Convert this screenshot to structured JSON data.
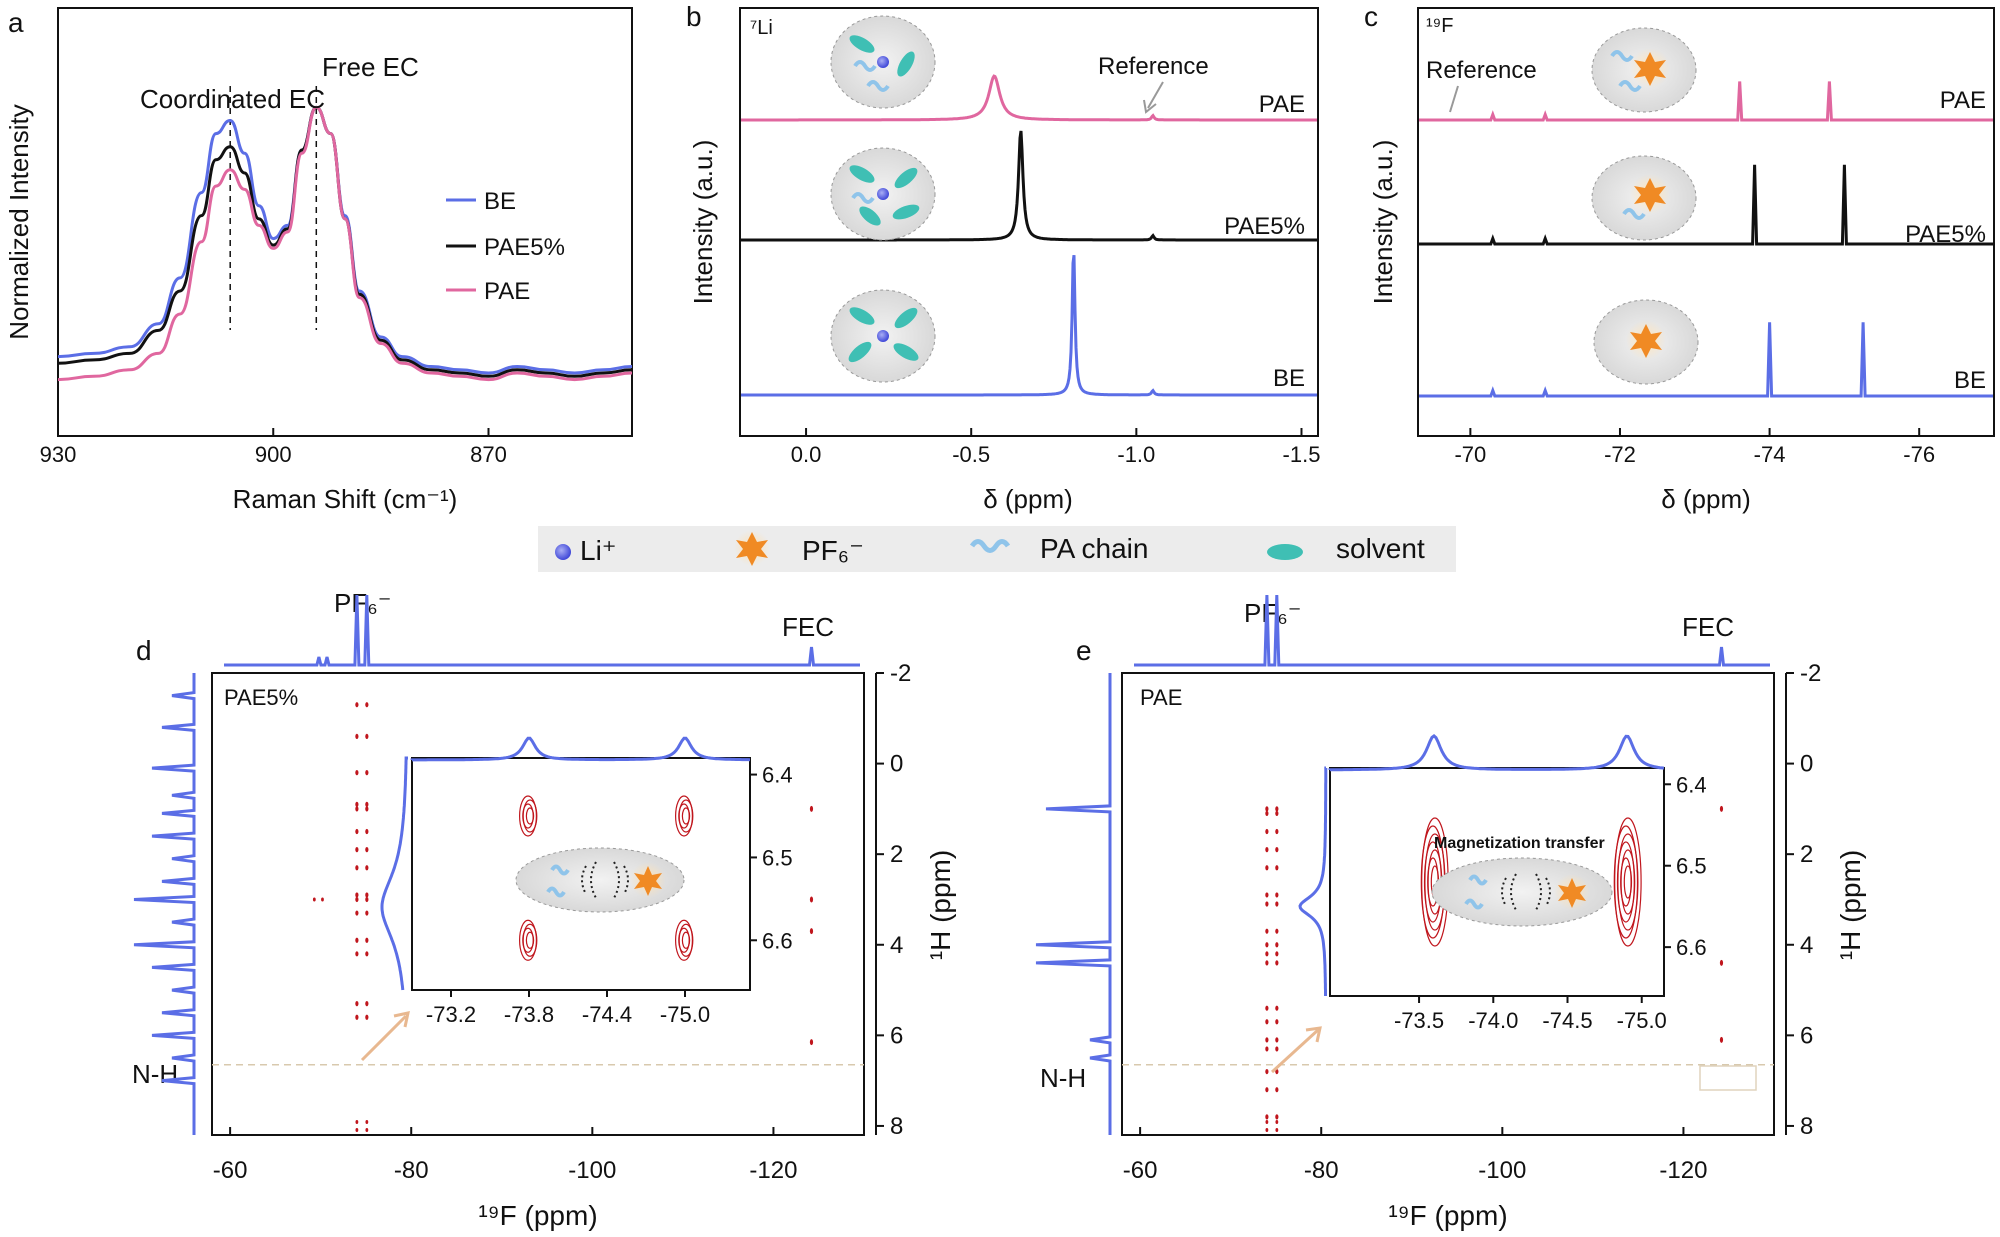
{
  "colors": {
    "BE": "#5b6ee6",
    "PAE5": "#111111",
    "PAE": "#e0679f",
    "contour": "#c0161d",
    "li": "#5b5fe0",
    "pf6": "#f08a24",
    "chain": "#8fc4ea",
    "solvent": "#3fbfb4",
    "dashLine": "#d8c9ae",
    "arrow": "#e8b890"
  },
  "legend_bar": {
    "items": [
      {
        "label": "Li⁺",
        "icon": "li-ion-icon"
      },
      {
        "label": "PF₆⁻",
        "icon": "pf6-star-icon"
      },
      {
        "label": "PA chain",
        "icon": "pa-chain-icon"
      },
      {
        "label": "solvent",
        "icon": "solvent-icon"
      }
    ]
  },
  "chart_data": [
    {
      "panel": "a",
      "type": "line",
      "xlabel": "Raman Shift (cm⁻¹)",
      "ylabel": "Normalized Intensity",
      "xlim": [
        930,
        850
      ],
      "xticks": [
        930,
        900,
        870
      ],
      "ylim": [
        0,
        1.0
      ],
      "annotations": [
        "Coordinated EC",
        "Free EC"
      ],
      "legend": {
        "position": "center-right",
        "entries": [
          "BE",
          "PAE5%",
          "PAE"
        ]
      },
      "peaks": {
        "coordinated_ec": 906,
        "free_ec": 894
      },
      "series": [
        {
          "name": "BE",
          "color": "#5b6ee6",
          "x": [
            930,
            925,
            920,
            916,
            913,
            910,
            908,
            906,
            904,
            902,
            900,
            898,
            896,
            894,
            892,
            890,
            888,
            885,
            882,
            878,
            874,
            870,
            866,
            862,
            858,
            854,
            850
          ],
          "y": [
            0.12,
            0.13,
            0.15,
            0.22,
            0.36,
            0.62,
            0.8,
            0.84,
            0.74,
            0.58,
            0.48,
            0.52,
            0.75,
            0.88,
            0.8,
            0.55,
            0.32,
            0.18,
            0.12,
            0.09,
            0.08,
            0.07,
            0.09,
            0.08,
            0.07,
            0.08,
            0.09
          ]
        },
        {
          "name": "PAE5%",
          "color": "#111111",
          "x": [
            930,
            925,
            920,
            916,
            913,
            910,
            908,
            906,
            904,
            902,
            900,
            898,
            896,
            894,
            892,
            890,
            888,
            885,
            882,
            878,
            874,
            870,
            866,
            862,
            858,
            854,
            850
          ],
          "y": [
            0.1,
            0.11,
            0.13,
            0.2,
            0.32,
            0.55,
            0.72,
            0.76,
            0.68,
            0.54,
            0.46,
            0.51,
            0.75,
            0.88,
            0.8,
            0.54,
            0.31,
            0.17,
            0.11,
            0.08,
            0.07,
            0.06,
            0.08,
            0.07,
            0.06,
            0.07,
            0.08
          ]
        },
        {
          "name": "PAE",
          "color": "#e0679f",
          "x": [
            930,
            925,
            920,
            916,
            913,
            910,
            908,
            906,
            904,
            902,
            900,
            898,
            896,
            894,
            892,
            890,
            888,
            885,
            882,
            878,
            874,
            870,
            866,
            862,
            858,
            854,
            850
          ],
          "y": [
            0.05,
            0.06,
            0.08,
            0.13,
            0.25,
            0.47,
            0.64,
            0.69,
            0.63,
            0.52,
            0.45,
            0.5,
            0.74,
            0.88,
            0.8,
            0.54,
            0.3,
            0.16,
            0.1,
            0.07,
            0.06,
            0.05,
            0.07,
            0.06,
            0.05,
            0.06,
            0.07
          ]
        }
      ]
    },
    {
      "panel": "b",
      "type": "line",
      "nucleus": "⁷Li",
      "xlabel": "δ (ppm)",
      "ylabel": "Intensity (a.u.)",
      "xlim": [
        0.2,
        -1.55
      ],
      "xticks": [
        0.0,
        -0.5,
        -1.0,
        -1.5
      ],
      "annotations": [
        "Reference"
      ],
      "series": [
        {
          "name": "PAE",
          "color": "#e0679f",
          "peak_ppm": -0.57,
          "peak_height": 0.4,
          "width": 0.02,
          "reference_ppm": -1.05
        },
        {
          "name": "PAE5%",
          "color": "#111111",
          "peak_ppm": -0.65,
          "peak_height": 1.0,
          "width": 0.008,
          "reference_ppm": -1.05
        },
        {
          "name": "BE",
          "color": "#5b6ee6",
          "peak_ppm": -0.81,
          "peak_height": 1.35,
          "width": 0.005,
          "reference_ppm": -1.05
        }
      ]
    },
    {
      "panel": "c",
      "type": "line",
      "nucleus": "¹⁹F",
      "xlabel": "δ (ppm)",
      "ylabel": "Intensity (a.u.)",
      "xlim": [
        -69.3,
        -77.0
      ],
      "xticks": [
        -70,
        -72,
        -74,
        -76
      ],
      "annotations": [
        "Reference"
      ],
      "series": [
        {
          "name": "PAE",
          "color": "#e0679f",
          "peaks_ppm": [
            -73.6,
            -74.8
          ],
          "peak_height": 0.35,
          "small_ppm": [
            -70.3,
            -71.0
          ]
        },
        {
          "name": "PAE5%",
          "color": "#111111",
          "peaks_ppm": [
            -73.8,
            -75.0
          ],
          "peak_height": 0.72,
          "small_ppm": [
            -70.3,
            -71.0
          ]
        },
        {
          "name": "BE",
          "color": "#5b6ee6",
          "peaks_ppm": [
            -74.0,
            -75.25
          ],
          "peak_height": 0.67,
          "small_ppm": [
            -70.3,
            -71.0
          ]
        }
      ]
    },
    {
      "panel": "d",
      "type": "heatmap",
      "sample": "PAE5%",
      "xlabel": "¹⁹F (ppm)",
      "ylabel": "¹H (ppm)",
      "xlim": [
        -58,
        -130
      ],
      "xticks": [
        -60,
        -80,
        -100,
        -120
      ],
      "ylim": [
        -2,
        8.2
      ],
      "yticks": [
        -2,
        0,
        2,
        4,
        6,
        8
      ],
      "top_labels": [
        "PF₆⁻",
        "FEC"
      ],
      "left_label": "N-H",
      "n_h_ppm": 6.65,
      "f_projection_peaks": [
        -74.0,
        -75.1,
        -124.2,
        -69.8,
        -70.7
      ],
      "h_projection_peaks": [
        -1.5,
        -0.8,
        0.1,
        0.7,
        1.1,
        1.6,
        2.1,
        2.6,
        3.0,
        3.5,
        4.0,
        4.5,
        5.0,
        5.5,
        6.0,
        6.5,
        7.0
      ],
      "cross_peak_h": [
        -1.3,
        -0.6,
        0.2,
        0.9,
        1.0,
        1.5,
        1.9,
        2.3,
        2.9,
        3.0,
        3.3,
        3.9,
        4.2,
        5.3,
        5.6
      ],
      "fec_cross_h": [
        1.0,
        3.0,
        3.7,
        6.15
      ],
      "inset": {
        "xlim": [
          -72.9,
          -75.5
        ],
        "xticks": [
          -73.2,
          -73.8,
          -74.4,
          -75.0
        ],
        "ylim": [
          6.38,
          6.66
        ],
        "yticks": [
          6.4,
          6.5,
          6.6
        ],
        "f_peaks": [
          -73.8,
          -75.0
        ],
        "h_peak": 6.56,
        "contours": [
          {
            "f": -73.8,
            "h": 6.6
          },
          {
            "f": -75.0,
            "h": 6.6
          },
          {
            "f": -73.8,
            "h": 6.45
          },
          {
            "f": -75.0,
            "h": 6.45
          }
        ]
      }
    },
    {
      "panel": "e",
      "type": "heatmap",
      "sample": "PAE",
      "xlabel": "¹⁹F (ppm)",
      "ylabel": "¹H (ppm)",
      "xlim": [
        -58,
        -130
      ],
      "xticks": [
        -60,
        -80,
        -100,
        -120
      ],
      "ylim": [
        -2,
        8.2
      ],
      "yticks": [
        -2,
        0,
        2,
        4,
        6,
        8
      ],
      "top_labels": [
        "PF₆⁻",
        "FEC"
      ],
      "left_label": "N-H",
      "n_h_ppm": 6.65,
      "f_projection_peaks": [
        -74.0,
        -75.1,
        -124.2
      ],
      "h_projection_peaks": [
        1.0,
        4.0,
        4.4,
        6.1,
        6.5
      ],
      "cross_peak_h": [
        1.0,
        1.1,
        1.5,
        1.9,
        2.3,
        2.9,
        3.1,
        3.7,
        4.0,
        4.2,
        4.4,
        5.4,
        5.7,
        6.1,
        6.3,
        6.8,
        7.2,
        7.8
      ],
      "fec_cross_h": [
        1.0,
        4.4,
        6.1
      ],
      "inset": {
        "xlim": [
          -72.9,
          -75.15
        ],
        "xticks": [
          -73.5,
          -74.0,
          -74.5,
          -75.0
        ],
        "ylim": [
          6.38,
          6.66
        ],
        "yticks": [
          6.4,
          6.5,
          6.6
        ],
        "f_peaks": [
          -73.6,
          -74.9
        ],
        "h_peak": 6.55,
        "annotation": "Magnetization transfer",
        "contours": [
          {
            "f": -73.6,
            "h": 6.52
          },
          {
            "f": -74.9,
            "h": 6.52
          }
        ]
      }
    }
  ],
  "labels": {
    "a": {
      "panel_letter": "a",
      "xlabel": "Raman Shift (cm⁻¹)",
      "ylabel": "Normalized Intensity",
      "coord": "Coordinated EC",
      "free": "Free EC",
      "leg": [
        "BE",
        "PAE5%",
        "PAE"
      ],
      "ticks": [
        "930",
        "900",
        "870"
      ]
    },
    "b": {
      "panel_letter": "b",
      "nucleus": "⁷Li",
      "xlabel": "δ (ppm)",
      "ylabel": "Intensity (a.u.)",
      "ref": "Reference",
      "traces": [
        "PAE",
        "PAE5%",
        "BE"
      ],
      "ticks": [
        "0.0",
        "-0.5",
        "-1.0",
        "-1.5"
      ]
    },
    "c": {
      "panel_letter": "c",
      "nucleus": "¹⁹F",
      "xlabel": "δ (ppm)",
      "ylabel": "Intensity (a.u.)",
      "ref": "Reference",
      "traces": [
        "PAE",
        "PAE5%",
        "BE"
      ],
      "ticks": [
        "-70",
        "-72",
        "-74",
        "-76"
      ]
    },
    "d": {
      "panel_letter": "d",
      "sample": "PAE5%",
      "pf6": "PF₆⁻",
      "fec": "FEC",
      "nh": "N-H",
      "xlabel": "¹⁹F (ppm)",
      "ylabel": "¹H (ppm)",
      "xticks": [
        "-60",
        "-80",
        "-100",
        "-120"
      ],
      "yticks": [
        "-2",
        "0",
        "2",
        "4",
        "6",
        "8"
      ],
      "ixticks": [
        "-73.2",
        "-73.8",
        "-74.4",
        "-75.0"
      ],
      "iyticks": [
        "6.4",
        "6.5",
        "6.6"
      ]
    },
    "e": {
      "panel_letter": "e",
      "sample": "PAE",
      "pf6": "PF₆⁻",
      "fec": "FEC",
      "nh": "N-H",
      "xlabel": "¹⁹F (ppm)",
      "ylabel": "¹H (ppm)",
      "xticks": [
        "-60",
        "-80",
        "-100",
        "-120"
      ],
      "yticks": [
        "-2",
        "0",
        "2",
        "4",
        "6",
        "8"
      ],
      "ixticks": [
        "-73.5",
        "-74.0",
        "-74.5",
        "-75.0"
      ],
      "iyticks": [
        "6.4",
        "6.5",
        "6.6"
      ],
      "mag": "Magnetization transfer"
    }
  }
}
